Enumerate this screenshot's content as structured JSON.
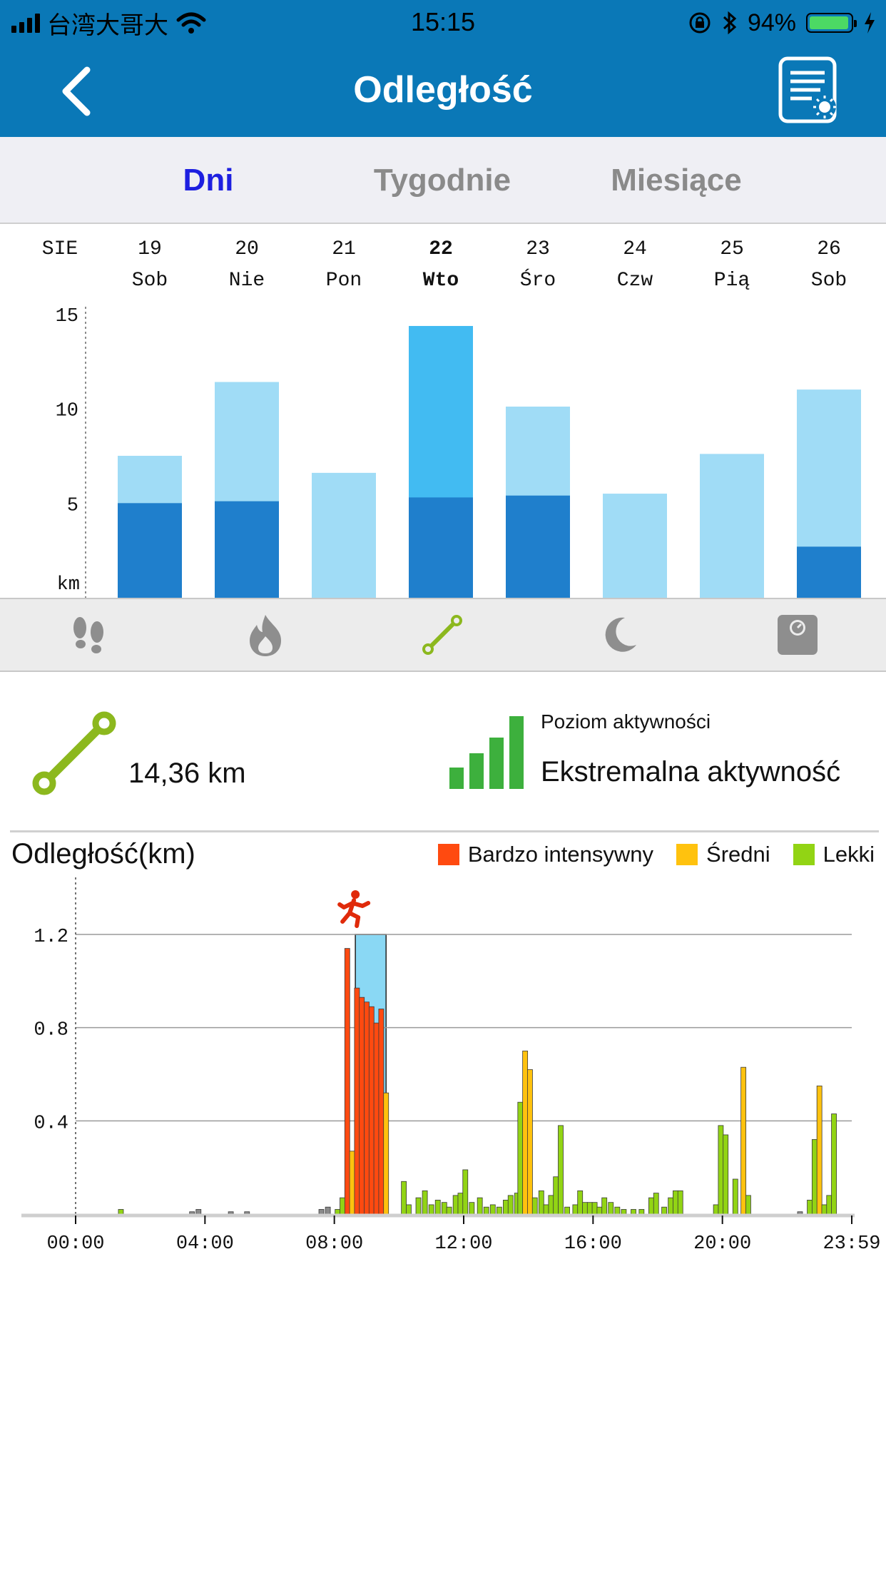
{
  "status_bar": {
    "carrier": "台湾大哥大",
    "time": "15:15",
    "battery": "94%"
  },
  "header": {
    "title": "Odległość",
    "back_icon": "chevron-left-icon",
    "report_icon": "report-settings-icon"
  },
  "tabs": [
    {
      "label": "Dni",
      "active": true
    },
    {
      "label": "Tygodnie",
      "active": false
    },
    {
      "label": "Miesiące",
      "active": false
    }
  ],
  "metric_icons": [
    "footsteps-icon",
    "flame-icon",
    "distance-icon",
    "moon-icon",
    "scale-icon"
  ],
  "summary": {
    "distance": "14,36 km",
    "level_label": "Poziom aktywności",
    "level_value": "Ekstremalna aktywność"
  },
  "colors": {
    "header": "#0a78b7",
    "active_tab": "#1d1fe0",
    "bar_dark": "#1f7fcc",
    "bar_light": "#a0dcf6",
    "bar_selected": "#42bbf2",
    "very_intense": "#ff4a10",
    "medium": "#ffc20e",
    "light": "#92d414",
    "level_icon": "#3db03d",
    "distance_icon": "#8cb81e"
  },
  "chart_data": [
    {
      "type": "bar",
      "month_label": "SIE",
      "unit_label": "km",
      "categories": [
        "19",
        "20",
        "21",
        "22",
        "23",
        "24",
        "25",
        "26"
      ],
      "day_names": [
        "Sob",
        "Nie",
        "Pon",
        "Wto",
        "Śro",
        "Czw",
        "Pią",
        "Sob"
      ],
      "selected_index": 3,
      "ylim": [
        0,
        15
      ],
      "yticks": [
        "15",
        "10",
        "5"
      ],
      "series": [
        {
          "values": [
            5.0,
            5.1,
            0,
            5.3,
            5.4,
            0,
            0,
            2.7
          ]
        },
        {
          "values": [
            7.5,
            11.4,
            6.6,
            14.36,
            10.1,
            5.5,
            7.6,
            11.0
          ]
        }
      ]
    },
    {
      "type": "bar",
      "title": "Odległość(km)",
      "legend": [
        "Bardzo intensywny",
        "Średni",
        "Lekki"
      ],
      "xticks": [
        "00:00",
        "04:00",
        "08:00",
        "12:00",
        "16:00",
        "20:00",
        "23:59"
      ],
      "yticks": [
        "1.2",
        "0.8",
        "0.4"
      ],
      "ylim": [
        0,
        1.2
      ],
      "highlight_range_hours": [
        8.65,
        9.6
      ],
      "marker_icon": "running-person-icon",
      "bars": [
        {
          "h": 1.4,
          "v": 0.02,
          "k": "light"
        },
        {
          "h": 3.6,
          "v": 0.01,
          "k": "idle"
        },
        {
          "h": 3.8,
          "v": 0.02,
          "k": "idle"
        },
        {
          "h": 4.8,
          "v": 0.01,
          "k": "idle"
        },
        {
          "h": 5.3,
          "v": 0.01,
          "k": "idle"
        },
        {
          "h": 7.6,
          "v": 0.02,
          "k": "idle"
        },
        {
          "h": 7.8,
          "v": 0.03,
          "k": "idle"
        },
        {
          "h": 8.1,
          "v": 0.02,
          "k": "light"
        },
        {
          "h": 8.25,
          "v": 0.07,
          "k": "light"
        },
        {
          "h": 8.4,
          "v": 1.14,
          "k": "intense"
        },
        {
          "h": 8.55,
          "v": 0.27,
          "k": "medium"
        },
        {
          "h": 8.7,
          "v": 0.97,
          "k": "intense"
        },
        {
          "h": 8.85,
          "v": 0.93,
          "k": "intense"
        },
        {
          "h": 9.0,
          "v": 0.91,
          "k": "intense"
        },
        {
          "h": 9.15,
          "v": 0.89,
          "k": "intense"
        },
        {
          "h": 9.3,
          "v": 0.82,
          "k": "intense"
        },
        {
          "h": 9.45,
          "v": 0.88,
          "k": "intense"
        },
        {
          "h": 9.6,
          "v": 0.52,
          "k": "medium"
        },
        {
          "h": 10.15,
          "v": 0.14,
          "k": "light"
        },
        {
          "h": 10.3,
          "v": 0.04,
          "k": "light"
        },
        {
          "h": 10.6,
          "v": 0.07,
          "k": "light"
        },
        {
          "h": 10.8,
          "v": 0.1,
          "k": "light"
        },
        {
          "h": 11.0,
          "v": 0.04,
          "k": "light"
        },
        {
          "h": 11.2,
          "v": 0.06,
          "k": "light"
        },
        {
          "h": 11.4,
          "v": 0.05,
          "k": "light"
        },
        {
          "h": 11.55,
          "v": 0.03,
          "k": "light"
        },
        {
          "h": 11.75,
          "v": 0.08,
          "k": "light"
        },
        {
          "h": 11.9,
          "v": 0.09,
          "k": "light"
        },
        {
          "h": 12.05,
          "v": 0.19,
          "k": "light"
        },
        {
          "h": 12.25,
          "v": 0.05,
          "k": "light"
        },
        {
          "h": 12.5,
          "v": 0.07,
          "k": "light"
        },
        {
          "h": 12.7,
          "v": 0.03,
          "k": "light"
        },
        {
          "h": 12.9,
          "v": 0.04,
          "k": "light"
        },
        {
          "h": 13.1,
          "v": 0.03,
          "k": "light"
        },
        {
          "h": 13.3,
          "v": 0.06,
          "k": "light"
        },
        {
          "h": 13.45,
          "v": 0.08,
          "k": "light"
        },
        {
          "h": 13.65,
          "v": 0.09,
          "k": "light"
        },
        {
          "h": 13.75,
          "v": 0.48,
          "k": "light"
        },
        {
          "h": 13.9,
          "v": 0.7,
          "k": "medium"
        },
        {
          "h": 14.05,
          "v": 0.62,
          "k": "medium"
        },
        {
          "h": 14.2,
          "v": 0.07,
          "k": "light"
        },
        {
          "h": 14.4,
          "v": 0.1,
          "k": "light"
        },
        {
          "h": 14.55,
          "v": 0.04,
          "k": "light"
        },
        {
          "h": 14.7,
          "v": 0.08,
          "k": "light"
        },
        {
          "h": 14.85,
          "v": 0.16,
          "k": "light"
        },
        {
          "h": 15.0,
          "v": 0.38,
          "k": "light"
        },
        {
          "h": 15.2,
          "v": 0.03,
          "k": "light"
        },
        {
          "h": 15.45,
          "v": 0.04,
          "k": "light"
        },
        {
          "h": 15.6,
          "v": 0.1,
          "k": "light"
        },
        {
          "h": 15.75,
          "v": 0.05,
          "k": "light"
        },
        {
          "h": 15.9,
          "v": 0.05,
          "k": "light"
        },
        {
          "h": 16.05,
          "v": 0.05,
          "k": "light"
        },
        {
          "h": 16.2,
          "v": 0.03,
          "k": "light"
        },
        {
          "h": 16.35,
          "v": 0.07,
          "k": "light"
        },
        {
          "h": 16.55,
          "v": 0.05,
          "k": "light"
        },
        {
          "h": 16.75,
          "v": 0.03,
          "k": "light"
        },
        {
          "h": 16.95,
          "v": 0.02,
          "k": "light"
        },
        {
          "h": 17.25,
          "v": 0.02,
          "k": "light"
        },
        {
          "h": 17.5,
          "v": 0.02,
          "k": "light"
        },
        {
          "h": 17.8,
          "v": 0.07,
          "k": "light"
        },
        {
          "h": 17.95,
          "v": 0.09,
          "k": "light"
        },
        {
          "h": 18.2,
          "v": 0.03,
          "k": "light"
        },
        {
          "h": 18.4,
          "v": 0.07,
          "k": "light"
        },
        {
          "h": 18.55,
          "v": 0.1,
          "k": "light"
        },
        {
          "h": 18.7,
          "v": 0.1,
          "k": "light"
        },
        {
          "h": 19.8,
          "v": 0.04,
          "k": "light"
        },
        {
          "h": 19.95,
          "v": 0.38,
          "k": "light"
        },
        {
          "h": 20.1,
          "v": 0.34,
          "k": "light"
        },
        {
          "h": 20.4,
          "v": 0.15,
          "k": "light"
        },
        {
          "h": 20.65,
          "v": 0.63,
          "k": "medium"
        },
        {
          "h": 20.8,
          "v": 0.08,
          "k": "light"
        },
        {
          "h": 22.4,
          "v": 0.01,
          "k": "idle"
        },
        {
          "h": 22.7,
          "v": 0.06,
          "k": "light"
        },
        {
          "h": 22.85,
          "v": 0.32,
          "k": "light"
        },
        {
          "h": 23.0,
          "v": 0.55,
          "k": "medium"
        },
        {
          "h": 23.15,
          "v": 0.04,
          "k": "light"
        },
        {
          "h": 23.3,
          "v": 0.08,
          "k": "light"
        },
        {
          "h": 23.45,
          "v": 0.43,
          "k": "light"
        }
      ]
    }
  ]
}
